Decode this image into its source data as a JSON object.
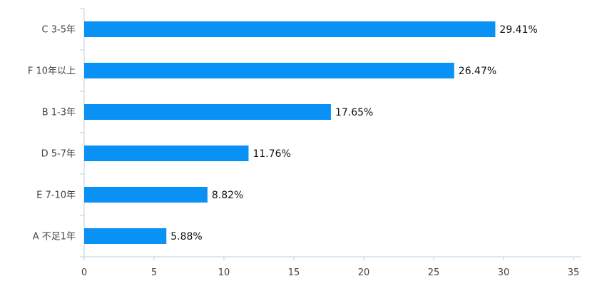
{
  "chart_data": {
    "type": "bar",
    "orientation": "horizontal",
    "categories": [
      "C 3-5年",
      "F 10年以上",
      "B 1-3年",
      "D 5-7年",
      "E 7-10年",
      "A 不足1年"
    ],
    "values": [
      29.41,
      26.47,
      17.65,
      11.76,
      8.82,
      5.88
    ],
    "data_labels": [
      "29.41%",
      "26.47%",
      "17.65%",
      "11.76%",
      "8.82%",
      "5.88%"
    ],
    "x_ticks": [
      "0",
      "5",
      "10",
      "15",
      "20",
      "25",
      "30",
      "35"
    ],
    "xlim": [
      0,
      35
    ],
    "title": "",
    "xlabel": "",
    "ylabel": "",
    "grid": false,
    "legend": "none",
    "colors": {
      "bar": "#0a91f5",
      "axis": "#b9cfe0"
    }
  }
}
